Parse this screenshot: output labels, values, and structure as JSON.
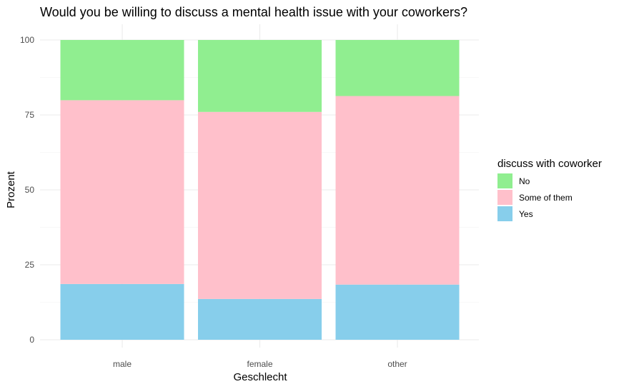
{
  "chart_data": {
    "type": "bar",
    "stacked": true,
    "title": "Would you be willing to discuss a mental health issue with your coworkers?",
    "xlabel": "Geschlecht",
    "ylabel": "Prozent",
    "categories": [
      "male",
      "female",
      "other"
    ],
    "ylim": [
      0,
      100
    ],
    "yticks": [
      "0",
      "25",
      "50",
      "75",
      "100"
    ],
    "grid": true,
    "legend": {
      "title": "discuss with coworker",
      "placement": "right",
      "order": [
        "No",
        "Some of them",
        "Yes"
      ]
    },
    "series": [
      {
        "name": "Yes",
        "color": "#87CEEB",
        "values": [
          18.6,
          13.6,
          18.4
        ]
      },
      {
        "name": "Some of them",
        "color": "#FFC0CB",
        "values": [
          61.3,
          62.4,
          62.9
        ]
      },
      {
        "name": "No",
        "color": "#90EE90",
        "values": [
          20.1,
          24.0,
          18.7
        ]
      }
    ]
  }
}
